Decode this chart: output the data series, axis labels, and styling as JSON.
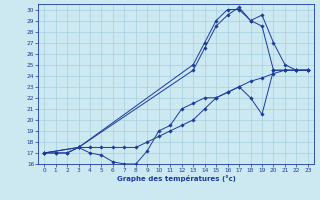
{
  "xlabel": "Graphe des températures (°c)",
  "bg_color": "#cce8f0",
  "grid_color": "#a8d0e0",
  "line_color": "#1a3a9e",
  "xlim": [
    -0.5,
    23.5
  ],
  "ylim": [
    16,
    30.5
  ],
  "yticks": [
    16,
    17,
    18,
    19,
    20,
    21,
    22,
    23,
    24,
    25,
    26,
    27,
    28,
    29,
    30
  ],
  "xticks": [
    0,
    1,
    2,
    3,
    4,
    5,
    6,
    7,
    8,
    9,
    10,
    11,
    12,
    13,
    14,
    15,
    16,
    17,
    18,
    19,
    20,
    21,
    22,
    23
  ],
  "line1_x": [
    0,
    1,
    2,
    3,
    4,
    5,
    6,
    7,
    8,
    9,
    10,
    11,
    12,
    13,
    14,
    15,
    16,
    17,
    18,
    19,
    20,
    21,
    22,
    23
  ],
  "line1_y": [
    17.0,
    17.0,
    17.0,
    17.5,
    17.0,
    16.8,
    16.2,
    16.0,
    16.0,
    17.2,
    19.0,
    19.5,
    21.0,
    21.5,
    22.0,
    22.0,
    22.5,
    23.0,
    22.0,
    20.5,
    24.5,
    24.5,
    24.5,
    24.5
  ],
  "line2_x": [
    0,
    1,
    2,
    3,
    4,
    5,
    6,
    7,
    8,
    9,
    10,
    11,
    12,
    13,
    14,
    15,
    16,
    17,
    18,
    19,
    20,
    21,
    22,
    23
  ],
  "line2_y": [
    17.0,
    17.0,
    17.0,
    17.5,
    17.5,
    17.5,
    17.5,
    17.5,
    17.5,
    18.0,
    18.5,
    19.0,
    19.5,
    20.0,
    21.0,
    22.0,
    22.5,
    23.0,
    23.5,
    23.8,
    24.2,
    24.5,
    24.5,
    24.5
  ],
  "line3_x": [
    0,
    3,
    13,
    14,
    15,
    16,
    17,
    18,
    19,
    20,
    21,
    22,
    23
  ],
  "line3_y": [
    17.0,
    17.5,
    25.0,
    27.0,
    29.0,
    30.0,
    30.0,
    29.0,
    29.5,
    27.0,
    25.0,
    24.5,
    24.5
  ],
  "line4_x": [
    0,
    3,
    13,
    14,
    15,
    16,
    17,
    18,
    19,
    20,
    21,
    22,
    23
  ],
  "line4_y": [
    17.0,
    17.5,
    24.5,
    26.5,
    28.5,
    29.5,
    30.2,
    29.0,
    28.5,
    24.5,
    24.5,
    24.5,
    24.5
  ]
}
